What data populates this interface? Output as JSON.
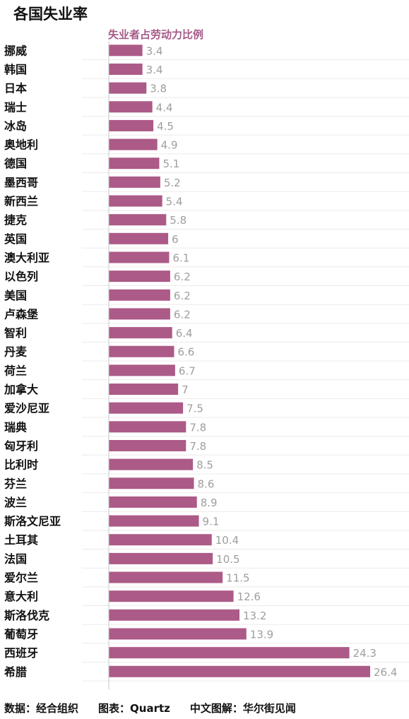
{
  "title": "各国失业率",
  "footer": {
    "source": "数据：经合组织",
    "chart_credit": "图表：Quartz",
    "chinese_credit": "中文图解：华尔街见闻"
  },
  "colors": {
    "bar": "#ac5a87",
    "subtitle": "#a55a87",
    "value_label": "#9e9e9e",
    "category_label": "#111111",
    "gridline": "#ebebeb",
    "axis": "#c8c8c8"
  },
  "chart_data": {
    "type": "bar",
    "orientation": "horizontal",
    "subtitle": "失业者占劳动力比例",
    "categories": [
      "挪威",
      "韩国",
      "日本",
      "瑞士",
      "冰岛",
      "奥地利",
      "德国",
      "墨西哥",
      "新西兰",
      "捷克",
      "英国",
      "澳大利亚",
      "以色列",
      "美国",
      "卢森堡",
      "智利",
      "丹麦",
      "荷兰",
      "加拿大",
      "爱沙尼亚",
      "瑞典",
      "匈牙利",
      "比利时",
      "芬兰",
      "波兰",
      "斯洛文尼亚",
      "土耳其",
      "法国",
      "爱尔兰",
      "意大利",
      "斯洛伐克",
      "葡萄牙",
      "西班牙",
      "希腊"
    ],
    "values": [
      3.4,
      3.4,
      3.8,
      4.4,
      4.5,
      4.9,
      5.1,
      5.2,
      5.4,
      5.8,
      6,
      6.1,
      6.2,
      6.2,
      6.2,
      6.4,
      6.6,
      6.7,
      7,
      7.5,
      7.8,
      7.8,
      8.5,
      8.6,
      8.9,
      9.1,
      10.4,
      10.5,
      11.5,
      12.6,
      13.2,
      13.9,
      24.3,
      26.4
    ],
    "xlim": [
      0,
      26.4
    ],
    "grid": true,
    "legend": "none"
  }
}
